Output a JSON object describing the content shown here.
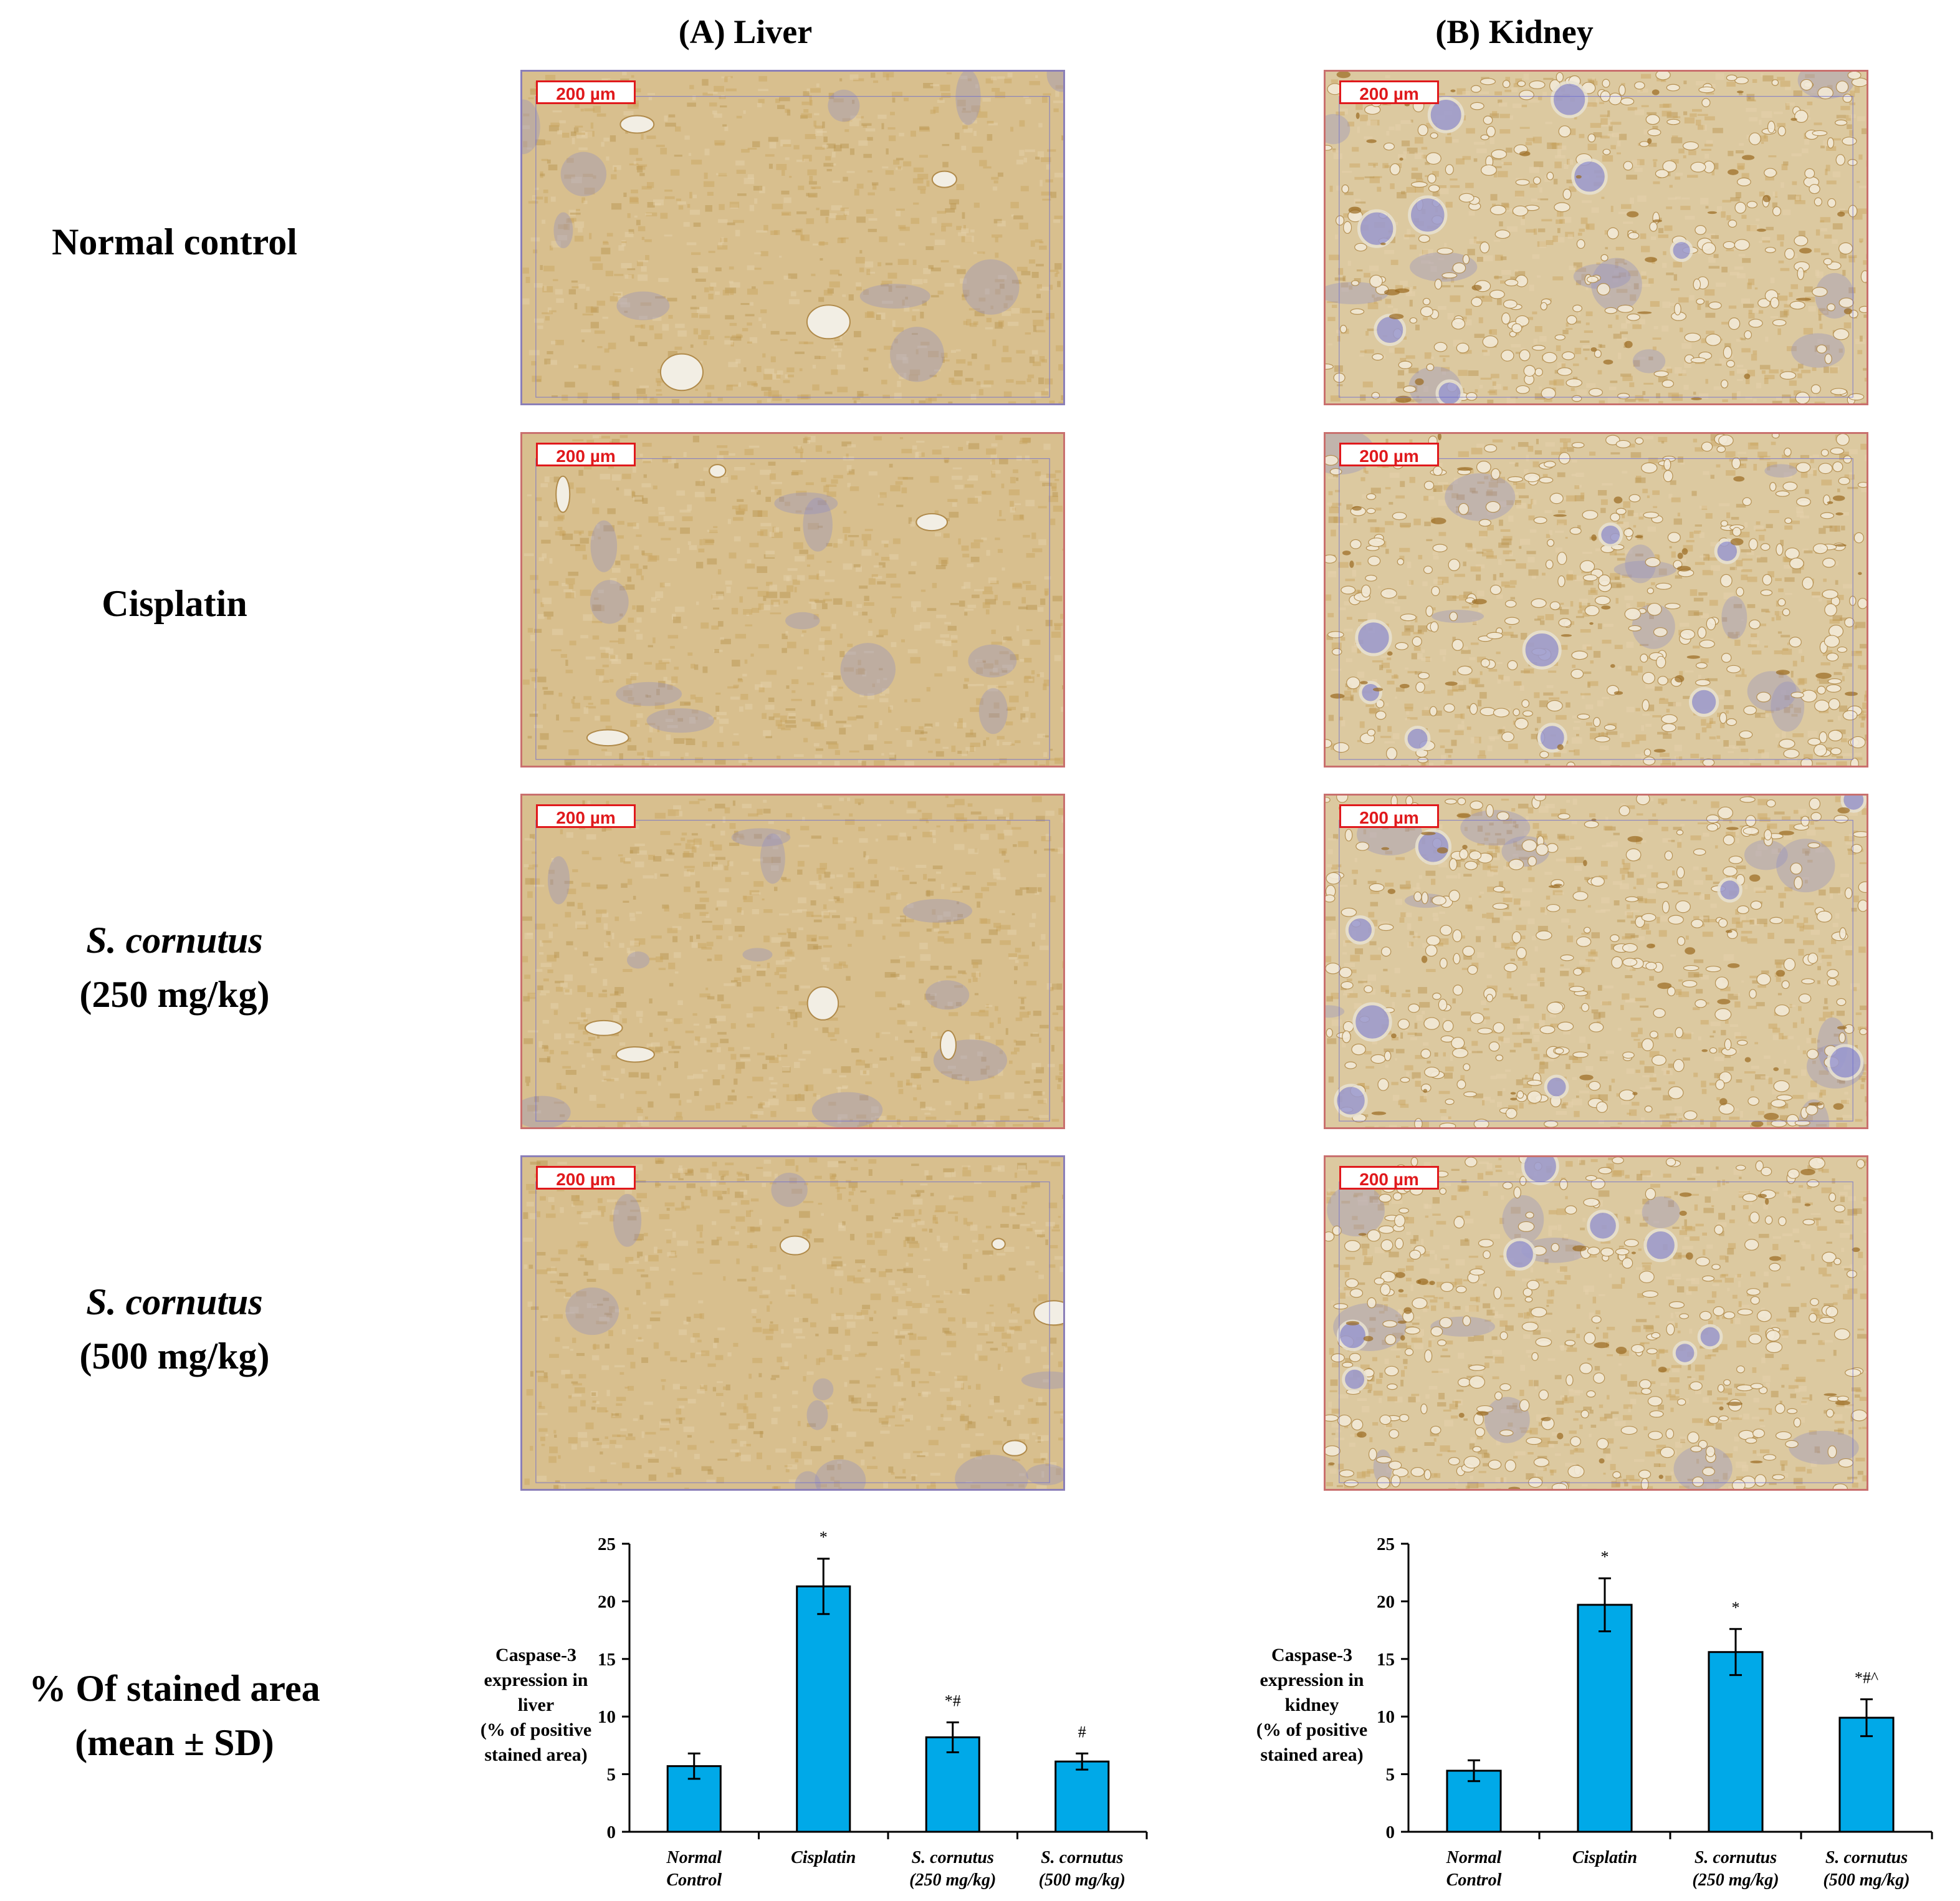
{
  "columns": {
    "liver": "(A) Liver",
    "kidney": "(B) Kidney"
  },
  "rows": [
    {
      "label": "Normal control",
      "label_italic": "",
      "label_dose": ""
    },
    {
      "label": "Cisplatin",
      "label_italic": "",
      "label_dose": ""
    },
    {
      "label": "",
      "label_italic": "S. cornutus",
      "label_dose": "(250 mg/kg)"
    },
    {
      "label": "",
      "label_italic": "S. cornutus",
      "label_dose": "(500 mg/kg)"
    }
  ],
  "summary_label": {
    "line1": "% Of stained area",
    "line2": "(mean ± SD)"
  },
  "scale_bar": "200 µm",
  "colors": {
    "bar": "#00a9e8",
    "stain_brown": "#c9a55e",
    "hematoxylin": "#8f8cc4",
    "scale_red": "#e0191c"
  },
  "chart_data": [
    {
      "type": "bar",
      "ylabel": [
        "Caspase-3",
        "expression in",
        "liver",
        "(% of positive",
        "stained area)"
      ],
      "categories": [
        [
          "Normal",
          "Control"
        ],
        [
          "Cisplatin"
        ],
        [
          "S. cornutus",
          "(250 mg/kg)"
        ],
        [
          "S. cornutus",
          "(500 mg/kg)"
        ]
      ],
      "values": [
        5.7,
        21.3,
        8.2,
        6.1
      ],
      "errors": [
        1.1,
        2.4,
        1.3,
        0.7
      ],
      "annotations": [
        "",
        "*",
        "*#",
        "#"
      ],
      "yticks": [
        0,
        5,
        10,
        15,
        20,
        25
      ],
      "ylim": [
        0,
        25
      ]
    },
    {
      "type": "bar",
      "ylabel": [
        "Caspase-3",
        "expression in",
        "kidney",
        "(% of positive",
        "stained area)"
      ],
      "categories": [
        [
          "Normal",
          "Control"
        ],
        [
          "Cisplatin"
        ],
        [
          "S. cornutus",
          "(250 mg/kg)"
        ],
        [
          "S. cornutus",
          "(500 mg/kg)"
        ]
      ],
      "values": [
        5.3,
        19.7,
        15.6,
        9.9
      ],
      "errors": [
        0.9,
        2.3,
        2.0,
        1.6
      ],
      "annotations": [
        "",
        "*",
        "*",
        "*#^"
      ],
      "yticks": [
        0,
        5,
        10,
        15,
        20,
        25
      ],
      "ylim": [
        0,
        25
      ]
    }
  ]
}
